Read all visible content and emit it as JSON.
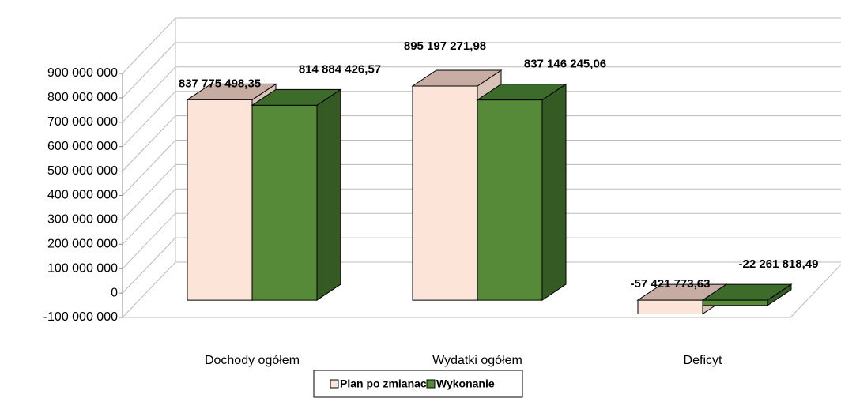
{
  "chart_data": {
    "type": "bar3d",
    "categories": [
      "Dochody ogółem",
      "Wydatki ogółem",
      "Deficyt"
    ],
    "series": [
      {
        "name": "Plan po zmianach",
        "color": "#fde4d9",
        "values": [
          837775498.35,
          895197271.98,
          -57421773.63
        ],
        "value_labels": [
          "837 775 498,35",
          "895 197 271,98",
          "-57 421 773,63"
        ]
      },
      {
        "name": "Wykonanie",
        "color": "#568a38",
        "values": [
          814884426.57,
          837146245.06,
          -22261818.49
        ],
        "value_labels": [
          "814 884 426,57",
          "837 146 245,06",
          "-22 261 818,49"
        ]
      }
    ],
    "ylim": [
      -100000000,
      900000000
    ],
    "yticks": [
      {
        "value": -100000000,
        "label": "-100 000 000"
      },
      0,
      {
        "value": 100000000,
        "label": "100 000 000"
      },
      {
        "value": 200000000,
        "label": "200 000 000"
      },
      {
        "value": 300000000,
        "label": "300 000 000"
      },
      {
        "value": 400000000,
        "label": "400 000 000"
      },
      {
        "value": 500000000,
        "label": "500 000 000"
      },
      {
        "value": 600000000,
        "label": "600 000 000"
      },
      {
        "value": 700000000,
        "label": "700 000 000"
      },
      {
        "value": 800000000,
        "label": "800 000 000"
      },
      {
        "value": 900000000,
        "label": "900 000 000"
      }
    ],
    "grid": true
  }
}
